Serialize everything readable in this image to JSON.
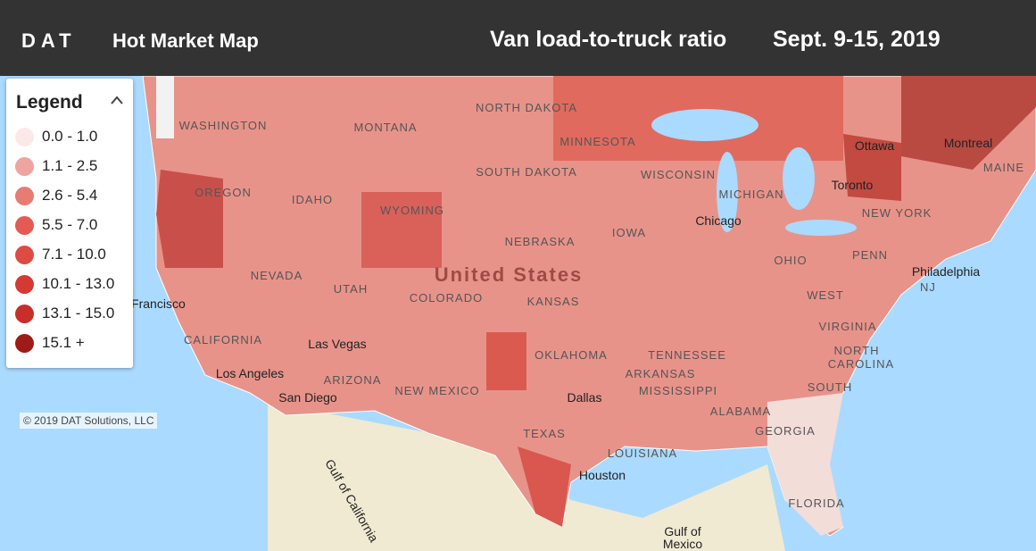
{
  "header": {
    "logo": "DAT",
    "title": "Hot Market Map",
    "metric": "Van load-to-truck ratio",
    "date": "Sept. 9-15, 2019"
  },
  "legend": {
    "title": "Legend",
    "items": [
      {
        "label": "0.0 - 1.0",
        "color": "#fbe9e7"
      },
      {
        "label": "1.1 - 2.5",
        "color": "#eea5a0"
      },
      {
        "label": "2.6 - 5.4",
        "color": "#e77c75"
      },
      {
        "label": "5.5 - 7.0",
        "color": "#e35b53"
      },
      {
        "label": "7.1 - 10.0",
        "color": "#de4b43"
      },
      {
        "label": "10.1 - 13.0",
        "color": "#d43a33"
      },
      {
        "label": "13.1 - 15.0",
        "color": "#c62f2a"
      },
      {
        "label": "15.1 +",
        "color": "#9e1b17"
      }
    ]
  },
  "map_labels": [
    "WASHINGTON",
    "MONTANA",
    "NORTH DAKOTA",
    "MINNESOTA",
    "SOUTH DAKOTA",
    "WISCONSIN",
    "MICHIGAN",
    "OREGON",
    "IDAHO",
    "WYOMING",
    "NEBRASKA",
    "IOWA",
    "Chicago",
    "NEW YORK",
    "Toronto",
    "Ottawa",
    "Montreal",
    "MAINE",
    "NEVADA",
    "UTAH",
    "United States",
    "COLORADO",
    "KANSAS",
    "OHIO",
    "PENN",
    "Philadelphia",
    "NJ",
    "San Francisco",
    "CALIFORNIA",
    "Las Vegas",
    "WEST",
    "VIRGINIA",
    "OKLAHOMA",
    "TENNESSEE",
    "NORTH",
    "CAROLINA",
    "Los Angeles",
    "ARIZONA",
    "NEW MEXICO",
    "ARKANSAS",
    "SOUTH",
    "San Diego",
    "Dallas",
    "MISSISSIPPI",
    "ALABAMA",
    "GEORGIA",
    "TEXAS",
    "LOUISIANA",
    "Houston",
    "FLORIDA",
    "Gulf of",
    "Mexico",
    "Gulf of California"
  ],
  "copyright": "© 2019 DAT Solutions, LLC"
}
